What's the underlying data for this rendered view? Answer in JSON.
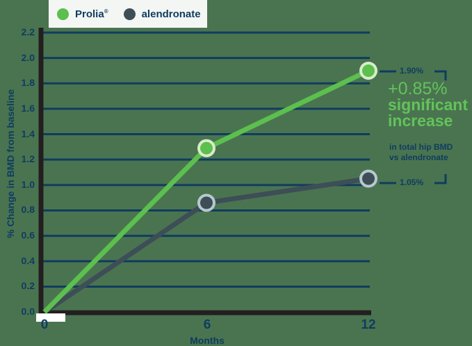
{
  "legend": {
    "items": [
      {
        "label": "Prolia",
        "mark": "®",
        "color": "#5cbf4e"
      },
      {
        "label": "alendronate",
        "color": "#3d4e57"
      }
    ]
  },
  "axes": {
    "ylabel": "% Change in BMD from baseline",
    "xlabel": "Months",
    "yticks": [
      "2.2",
      "2.0",
      "1.8",
      "1.6",
      "1.4",
      "1.2",
      "1.0",
      "0.8",
      "0.6",
      "0.4",
      "0.2",
      "0.0"
    ],
    "xticks": [
      "0",
      "6",
      "12"
    ]
  },
  "annotation": {
    "prolia_value": "1.90%",
    "alendronate_value": "1.05%",
    "delta": "+0.85%",
    "line1": "significant",
    "line2": "increase",
    "sub1": "in total hip BMD",
    "sub2": "vs alendronate"
  },
  "chart_data": {
    "type": "line",
    "title": "",
    "xlabel": "Months",
    "ylabel": "% Change in BMD from baseline",
    "x": [
      0,
      6,
      12
    ],
    "ylim": [
      0,
      2.2
    ],
    "grid": true,
    "legend_position": "top-left",
    "series": [
      {
        "name": "Prolia®",
        "values": [
          0,
          1.29,
          1.9
        ],
        "color": "#5cbf4e"
      },
      {
        "name": "alendronate",
        "values": [
          0,
          0.86,
          1.05
        ],
        "color": "#3d4e57"
      }
    ],
    "annotations": [
      "1.90%",
      "1.05%",
      "+0.85% significant increase in total hip BMD vs alendronate"
    ]
  }
}
